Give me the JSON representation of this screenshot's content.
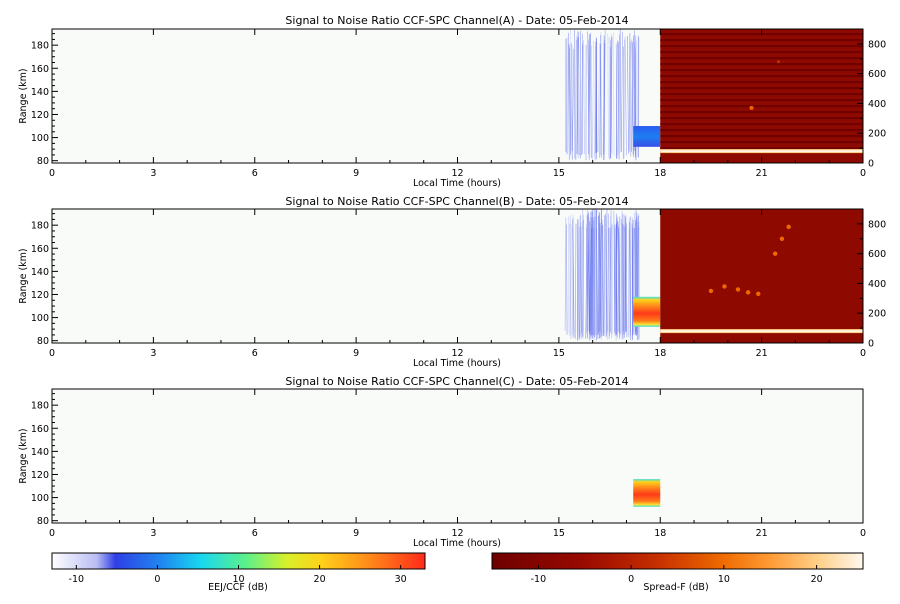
{
  "chart_data": [
    {
      "type": "heatmap",
      "title": "Signal to Noise Ratio CCF-SPC Channel(A) - Date: 05-Feb-2014",
      "xlabel": "Local Time (hours)",
      "ylabel": "Range (km)",
      "xlim": [
        0,
        24
      ],
      "ylim": [
        78,
        194
      ],
      "x_ticks": [
        "0",
        "3",
        "6",
        "9",
        "12",
        "15",
        "18",
        "21",
        "0"
      ],
      "y_ticks": [
        "80",
        "100",
        "120",
        "140",
        "160",
        "180"
      ],
      "y2lim": [
        0,
        900
      ],
      "y2_ticks": [
        "0",
        "200",
        "400",
        "600",
        "800"
      ],
      "regions": [
        {
          "name": "EEJ/CCF",
          "x_range": [
            15.2,
            17.4
          ],
          "y_range": [
            80,
            194
          ],
          "level": "weak, vertical streaks"
        },
        {
          "name": "EEJ/CCF",
          "x_range": [
            17.2,
            18.0
          ],
          "y_range": [
            92,
            110
          ],
          "level": "about -5 dB"
        },
        {
          "name": "Spread-F",
          "x_range": [
            18.0,
            24.0
          ],
          "y2_range": [
            0,
            900
          ],
          "level": "about -10 dB, banded; strong layer near 100 km"
        }
      ]
    },
    {
      "type": "heatmap",
      "title": "Signal to Noise Ratio CCF-SPC Channel(B) - Date: 05-Feb-2014",
      "xlabel": "Local Time (hours)",
      "ylabel": "Range (km)",
      "xlim": [
        0,
        24
      ],
      "ylim": [
        78,
        194
      ],
      "x_ticks": [
        "0",
        "3",
        "6",
        "9",
        "12",
        "15",
        "18",
        "21",
        "0"
      ],
      "y_ticks": [
        "80",
        "100",
        "120",
        "140",
        "160",
        "180"
      ],
      "y2lim": [
        0,
        900
      ],
      "y2_ticks": [
        "0",
        "200",
        "400",
        "600",
        "800"
      ],
      "regions": [
        {
          "name": "EEJ/CCF",
          "x_range": [
            15.2,
            17.4
          ],
          "y_range": [
            80,
            194
          ],
          "level": "weak, vertical streaks"
        },
        {
          "name": "EEJ/CCF",
          "x_range": [
            17.2,
            18.0
          ],
          "y_range": [
            92,
            118
          ],
          "level": "about 30 dB"
        },
        {
          "name": "Spread-F",
          "x_range": [
            18.0,
            24.0
          ],
          "y2_range": [
            0,
            900
          ],
          "level": "about -10 dB; strong layer near 100 km, plumes near 19.5-22 h"
        }
      ]
    },
    {
      "type": "heatmap",
      "title": "Signal to Noise Ratio CCF-SPC Channel(C) - Date: 05-Feb-2014",
      "xlabel": "Local Time (hours)",
      "ylabel": "Range (km)",
      "xlim": [
        0,
        24
      ],
      "ylim": [
        78,
        194
      ],
      "x_ticks": [
        "0",
        "3",
        "6",
        "9",
        "12",
        "15",
        "18",
        "21",
        "0"
      ],
      "y_ticks": [
        "80",
        "100",
        "120",
        "140",
        "160",
        "180"
      ],
      "regions": [
        {
          "name": "EEJ/CCF",
          "x_range": [
            17.2,
            18.0
          ],
          "y_range": [
            92,
            116
          ],
          "level": "about 30 dB"
        }
      ]
    }
  ],
  "colorbars": [
    {
      "label": "EEJ/CCF (dB)",
      "range": [
        -13,
        33
      ],
      "ticks": [
        "-10",
        "0",
        "10",
        "20",
        "30"
      ],
      "tick_values": [
        -10,
        0,
        10,
        20,
        30
      ]
    },
    {
      "label": "Spread-F (dB)",
      "range": [
        -15,
        25
      ],
      "ticks": [
        "-10",
        "0",
        "10",
        "20"
      ],
      "tick_values": [
        -10,
        0,
        10,
        20
      ]
    }
  ],
  "colors": {
    "eej_scale": [
      "#ffffff",
      "#b9bdf2",
      "#2e3fe6",
      "#1f8cf0",
      "#19d8f0",
      "#5cf08a",
      "#d8f02a",
      "#ffd21a",
      "#ff8a1a",
      "#ff2a1a"
    ],
    "spreadf_scale": [
      "#6e0000",
      "#9a0a00",
      "#c83000",
      "#ee6a00",
      "#ff9b35",
      "#ffd08a",
      "#fff8ee"
    ],
    "plot_background": "#f9fbf9",
    "axis": "#000000"
  }
}
